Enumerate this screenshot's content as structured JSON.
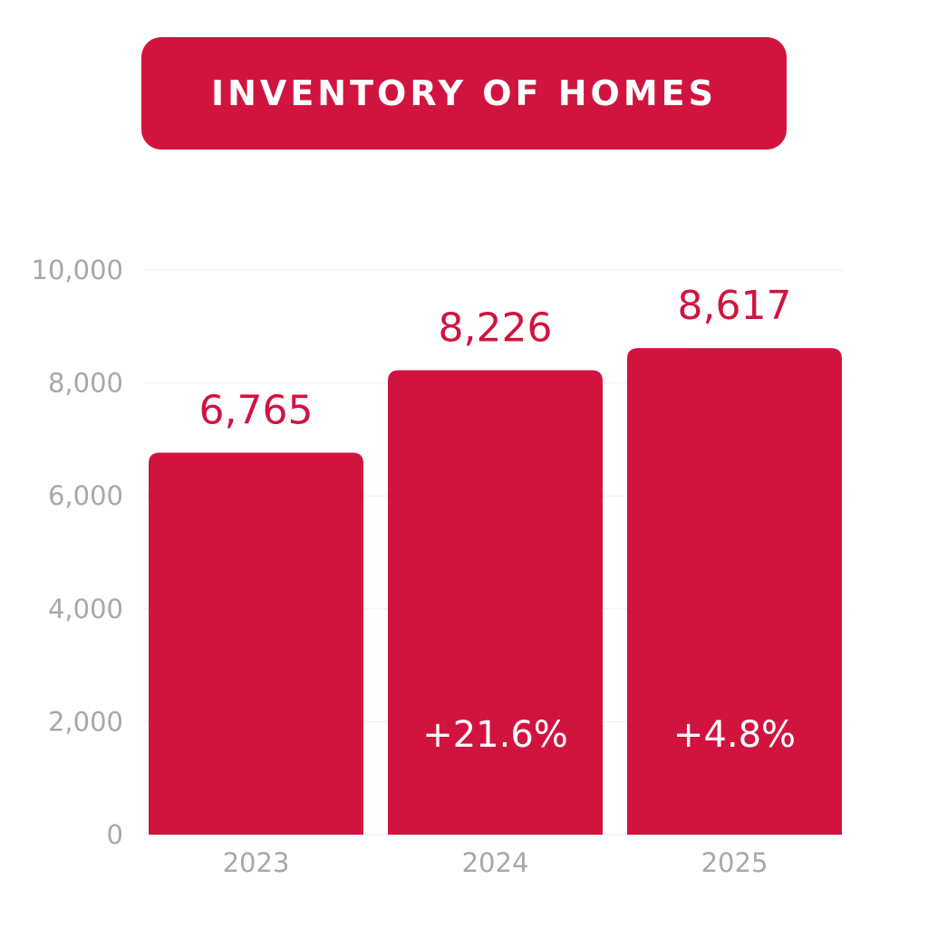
{
  "colors": {
    "accent": "#d1143f",
    "gridline": "#eeeeee",
    "tick_text": "#a8a8a8",
    "label_on_bar": "#ffffff"
  },
  "chart_data": {
    "type": "bar",
    "title": "INVENTORY OF HOMES",
    "categories": [
      "2023",
      "2024",
      "2025"
    ],
    "values": [
      6765,
      8226,
      8617
    ],
    "value_labels": [
      "6,765",
      "8,226",
      "8,617"
    ],
    "change_labels": [
      "",
      "+21.6%",
      "+4.8%"
    ],
    "y_ticks": [
      0,
      2000,
      4000,
      6000,
      8000,
      10000
    ],
    "y_tick_labels": [
      "0",
      "2,000",
      "4,000",
      "6,000",
      "8,000",
      "10,000"
    ],
    "ylim": [
      0,
      10000
    ],
    "grid": true,
    "legend": "none"
  }
}
